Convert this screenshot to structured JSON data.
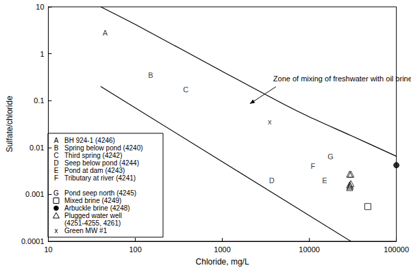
{
  "chart_data": {
    "type": "scatter",
    "log": true,
    "grid": false,
    "legend": "lower left",
    "x_label": "Chloride, mg/L",
    "y_label": "Sulfate/chloride",
    "xlim": [
      10,
      100000
    ],
    "xticks": [
      10,
      100,
      1000,
      10000,
      100000
    ],
    "ylim": [
      0.0001,
      10
    ],
    "yticks": [
      0.0001,
      0.001,
      0.01,
      0.1,
      1,
      10
    ],
    "series": [
      {
        "name": "BH 924-1 (4246)",
        "marker": "A",
        "color": "#000000",
        "x": [
          45
        ],
        "values": [
          2.8
        ]
      },
      {
        "name": "Spring below pond (4240)",
        "marker": "B",
        "color": "#000000",
        "x": [
          150
        ],
        "values": [
          0.35
        ]
      },
      {
        "name": "Third spring (4242)",
        "marker": "C",
        "color": "#000000",
        "x": [
          380
        ],
        "values": [
          0.17
        ]
      },
      {
        "name": "Seep below pond (4244)",
        "marker": "D",
        "color": "#000000",
        "x": [
          3700
        ],
        "values": [
          0.002
        ]
      },
      {
        "name": "Pond at dam (4243)",
        "marker": "E",
        "color": "#000000",
        "x": [
          15000
        ],
        "values": [
          0.002
        ]
      },
      {
        "name": "Tributary at river (4241)",
        "marker": "F",
        "color": "#000000",
        "x": [
          11000
        ],
        "values": [
          0.004
        ]
      },
      {
        "name": "Pond seep north (4245)",
        "marker": "G",
        "color": "#000000",
        "x": [
          17500
        ],
        "values": [
          0.0065
        ]
      },
      {
        "name": "Mixed brine (4249)",
        "marker": "square",
        "color": "#000000",
        "x": [
          47000
        ],
        "values": [
          0.00055
        ]
      },
      {
        "name": "Arbuckle brine (4248)",
        "marker": "circle",
        "color": "#000000",
        "x": [
          100000
        ],
        "values": [
          0.0042
        ]
      },
      {
        "name": "Plugged water well (4251-4255, 4261)",
        "marker": "triangle",
        "color": "#000000",
        "x": [
          29000,
          30000,
          29000,
          29500,
          29000,
          30000
        ],
        "values": [
          0.0027,
          0.0027,
          0.0016,
          0.0015,
          0.0014,
          0.0017
        ]
      },
      {
        "name": "Green MW #1",
        "marker": "x",
        "color": "#000000",
        "x": [
          3500
        ],
        "values": [
          0.035
        ]
      }
    ],
    "lines": [
      {
        "color": "#000000",
        "x": [
          40,
          100,
          1000,
          5000,
          10000,
          30000,
          100000
        ],
        "values": [
          10,
          4.2,
          0.42,
          0.085,
          0.045,
          0.018,
          0.0065
        ]
      },
      {
        "color": "#000000",
        "x": [
          40,
          30000
        ],
        "values": [
          0.2,
          0.0001
        ]
      }
    ],
    "annotations": [
      {
        "text": "Zone of mixing of freshwater with oil brine",
        "x": 2000,
        "y": 0.08
      }
    ]
  }
}
